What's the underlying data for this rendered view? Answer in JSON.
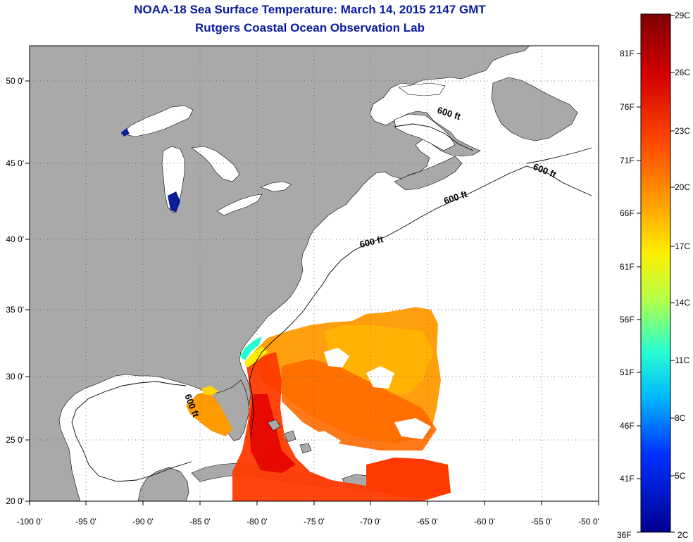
{
  "title": "NOAA-18 Sea Surface Temperature:  March 14, 2015 2147 GMT",
  "subtitle": "Rutgers Coastal Ocean Observation Lab",
  "lon_ticks": [
    "-100 0'",
    "-95 0'",
    "-90 0'",
    "-85 0'",
    "-80 0'",
    "-75 0'",
    "-70 0'",
    "-65 0'",
    "-60 0'",
    "-55 0'",
    "-50 0'"
  ],
  "lat_ticks": [
    "50 0'",
    "45 0'",
    "40 0'",
    "35 0'",
    "30 0'",
    "25 0'",
    "20 0'"
  ],
  "contour_labels": [
    "600 ft",
    "600 ft",
    "600 ft",
    "600 ft",
    "600 ft"
  ],
  "colorbar": {
    "celsius": [
      "29C",
      "26C",
      "23C",
      "20C",
      "17C",
      "14C",
      "11C",
      "8C",
      "5C",
      "2C"
    ],
    "fahrenheit": [
      "81F",
      "76F",
      "71F",
      "66F",
      "61F",
      "56F",
      "51F",
      "46F",
      "41F",
      "36F"
    ],
    "colors": [
      "#7f0000",
      "#d40000",
      "#ff4500",
      "#ff9a00",
      "#ffee00",
      "#a6ff4f",
      "#28ffd0",
      "#00a0ff",
      "#0028ff",
      "#000090"
    ]
  },
  "colors": {
    "land": "#a9a9a9",
    "ocean": "#ffffff",
    "title": "#0a1a9e"
  }
}
